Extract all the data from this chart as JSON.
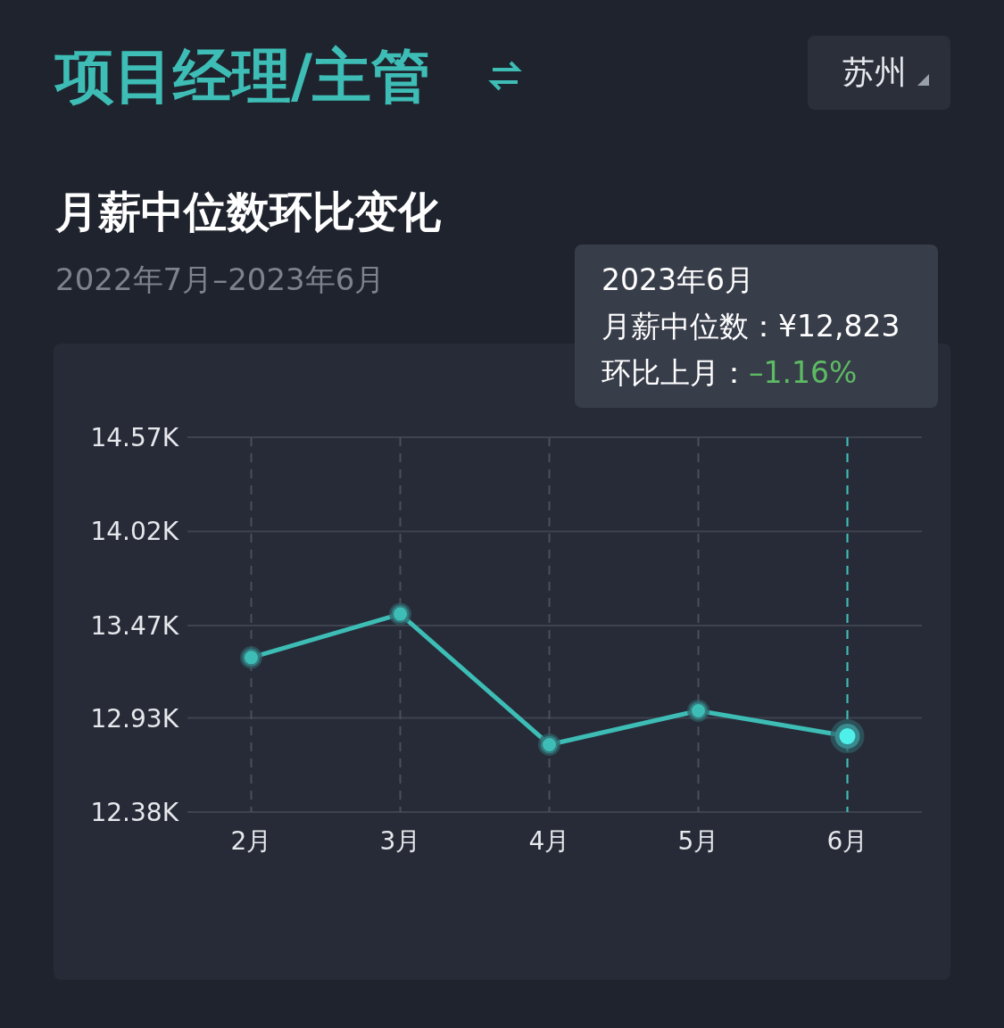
{
  "chart_data": {
    "type": "line",
    "title": "项目经理/主管",
    "subtitle": "月薪中位数环比变化",
    "annotations": [
      "苏州",
      "2022年7月–2023年6月",
      "2023年6月",
      "月薪中位数：¥12,823",
      "环比上月：–1.16%"
    ],
    "categories": [
      "2月",
      "3月",
      "4月",
      "5月",
      "6月"
    ],
    "series": [
      {
        "color": "#3dbdb5",
        "values": [
          13283,
          13537,
          12774,
          12972,
          12823
        ]
      }
    ],
    "ylim": [
      12380,
      14570
    ],
    "yticks": [
      {
        "value": 12380,
        "label": "12.38K"
      },
      {
        "value": 12930,
        "label": "12.93K"
      },
      {
        "value": 13470,
        "label": "13.47K"
      },
      {
        "value": 14020,
        "label": "14.02K"
      },
      {
        "value": 14570,
        "label": "14.57K"
      }
    ],
    "ref_lines": [
      {
        "axis": "x",
        "value": "6月",
        "color": "#3dbdb5",
        "line_style": "dashed"
      }
    ],
    "grid": true,
    "marker": "circle",
    "line_style": "solid"
  }
}
